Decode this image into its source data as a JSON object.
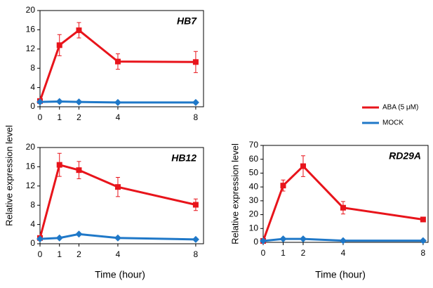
{
  "chart_data": [
    {
      "type": "line",
      "title": "HB7",
      "x": [
        0,
        1,
        2,
        4,
        8
      ],
      "xlim": [
        0,
        8.4
      ],
      "xticks": [
        0,
        1,
        2,
        4,
        8
      ],
      "ylim": [
        0,
        20
      ],
      "yticks": [
        0,
        4,
        8,
        12,
        16,
        20
      ],
      "grid": false,
      "series": [
        {
          "name": "ABA (5 μM)",
          "color": "#e8141b",
          "marker": "square",
          "values": [
            1.2,
            12.8,
            15.9,
            9.4,
            9.3
          ],
          "errors": [
            null,
            2.2,
            1.6,
            1.6,
            2.2
          ]
        },
        {
          "name": "MOCK",
          "color": "#1f78c8",
          "marker": "diamond",
          "values": [
            1.0,
            1.1,
            1.0,
            0.9,
            0.9
          ]
        }
      ]
    },
    {
      "type": "line",
      "title": "HB12",
      "x_label": "Time (hour)",
      "y_label": "Relative expression level",
      "x": [
        0,
        1,
        2,
        4,
        8
      ],
      "xlim": [
        0,
        8.4
      ],
      "xticks": [
        0,
        1,
        2,
        4,
        8
      ],
      "ylim": [
        0,
        20
      ],
      "yticks": [
        0,
        4,
        8,
        12,
        16,
        20
      ],
      "grid": false,
      "series": [
        {
          "name": "ABA (5 μM)",
          "color": "#e8141b",
          "marker": "square",
          "values": [
            1.2,
            16.4,
            15.3,
            11.8,
            8.1
          ],
          "errors": [
            null,
            2.4,
            1.8,
            2.0,
            1.2
          ]
        },
        {
          "name": "MOCK",
          "color": "#1f78c8",
          "marker": "diamond",
          "values": [
            1.0,
            1.2,
            2.0,
            1.2,
            0.9
          ]
        }
      ]
    },
    {
      "type": "line",
      "title": "RD29A",
      "x_label": "Time (hour)",
      "y_label": "Relative expression level",
      "x": [
        0,
        1,
        2,
        4,
        8
      ],
      "xlim": [
        0,
        8.25
      ],
      "xticks": [
        0,
        1,
        2,
        4,
        8
      ],
      "ylim": [
        0,
        70
      ],
      "yticks": [
        0,
        10,
        20,
        30,
        40,
        50,
        60,
        70
      ],
      "grid": false,
      "series": [
        {
          "name": "ABA (5 μM)",
          "color": "#e8141b",
          "marker": "square",
          "values": [
            1,
            41,
            55,
            25,
            16.5
          ],
          "errors": [
            null,
            4,
            7.5,
            4.5,
            1
          ]
        },
        {
          "name": "MOCK",
          "color": "#1f78c8",
          "marker": "diamond",
          "values": [
            1,
            2.5,
            2.5,
            1.2,
            1.2
          ]
        }
      ]
    }
  ]
}
